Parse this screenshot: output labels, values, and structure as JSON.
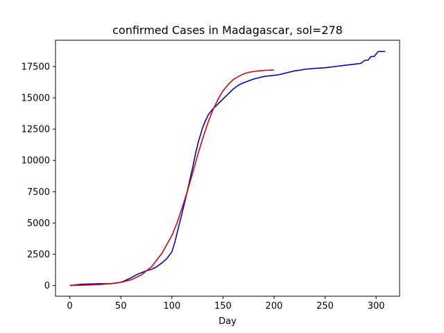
{
  "chart_data": {
    "type": "line",
    "title": "confirmed Cases in Madagascar, sol=278",
    "xlabel": "Day",
    "ylabel": "",
    "xlim": [
      -14,
      323
    ],
    "ylim": [
      -850,
      19600
    ],
    "xticks": [
      0,
      50,
      100,
      150,
      200,
      250,
      300
    ],
    "yticks": [
      0,
      2500,
      5000,
      7500,
      10000,
      12500,
      15000,
      17500
    ],
    "grid": false,
    "series": [
      {
        "name": "",
        "color": "#0000cc",
        "x": [
          0,
          10,
          20,
          30,
          40,
          45,
          50,
          55,
          60,
          65,
          70,
          75,
          80,
          85,
          90,
          95,
          100,
          103,
          106,
          110,
          115,
          118,
          120,
          123,
          126,
          130,
          133,
          136,
          140,
          145,
          150,
          155,
          160,
          165,
          170,
          175,
          180,
          185,
          190,
          195,
          200,
          205,
          210,
          215,
          220,
          225,
          230,
          240,
          250,
          260,
          270,
          280,
          285,
          289,
          292,
          295,
          298,
          302,
          305,
          309
        ],
        "y": [
          0,
          100,
          130,
          150,
          160,
          200,
          260,
          430,
          620,
          850,
          1030,
          1180,
          1300,
          1500,
          1800,
          2150,
          2700,
          3500,
          4500,
          5800,
          7500,
          8600,
          9300,
          10500,
          11500,
          12600,
          13200,
          13700,
          14100,
          14500,
          14900,
          15300,
          15700,
          16000,
          16200,
          16350,
          16500,
          16600,
          16700,
          16750,
          16800,
          16850,
          16950,
          17050,
          17150,
          17200,
          17280,
          17350,
          17400,
          17500,
          17600,
          17700,
          17750,
          18000,
          18000,
          18300,
          18300,
          18700,
          18700,
          18700
        ]
      },
      {
        "name": "",
        "color": "#dd0000",
        "x": [
          0,
          10,
          20,
          30,
          40,
          50,
          60,
          70,
          80,
          90,
          100,
          105,
          110,
          115,
          120,
          125,
          130,
          135,
          140,
          145,
          150,
          155,
          160,
          165,
          170,
          175,
          180,
          185,
          190,
          195,
          200
        ],
        "y": [
          10,
          25,
          50,
          90,
          150,
          260,
          460,
          850,
          1500,
          2550,
          4000,
          5000,
          6200,
          7500,
          8900,
          10350,
          11700,
          12950,
          14000,
          14850,
          15550,
          16050,
          16450,
          16700,
          16900,
          17030,
          17100,
          17150,
          17180,
          17210,
          17220
        ]
      }
    ]
  }
}
